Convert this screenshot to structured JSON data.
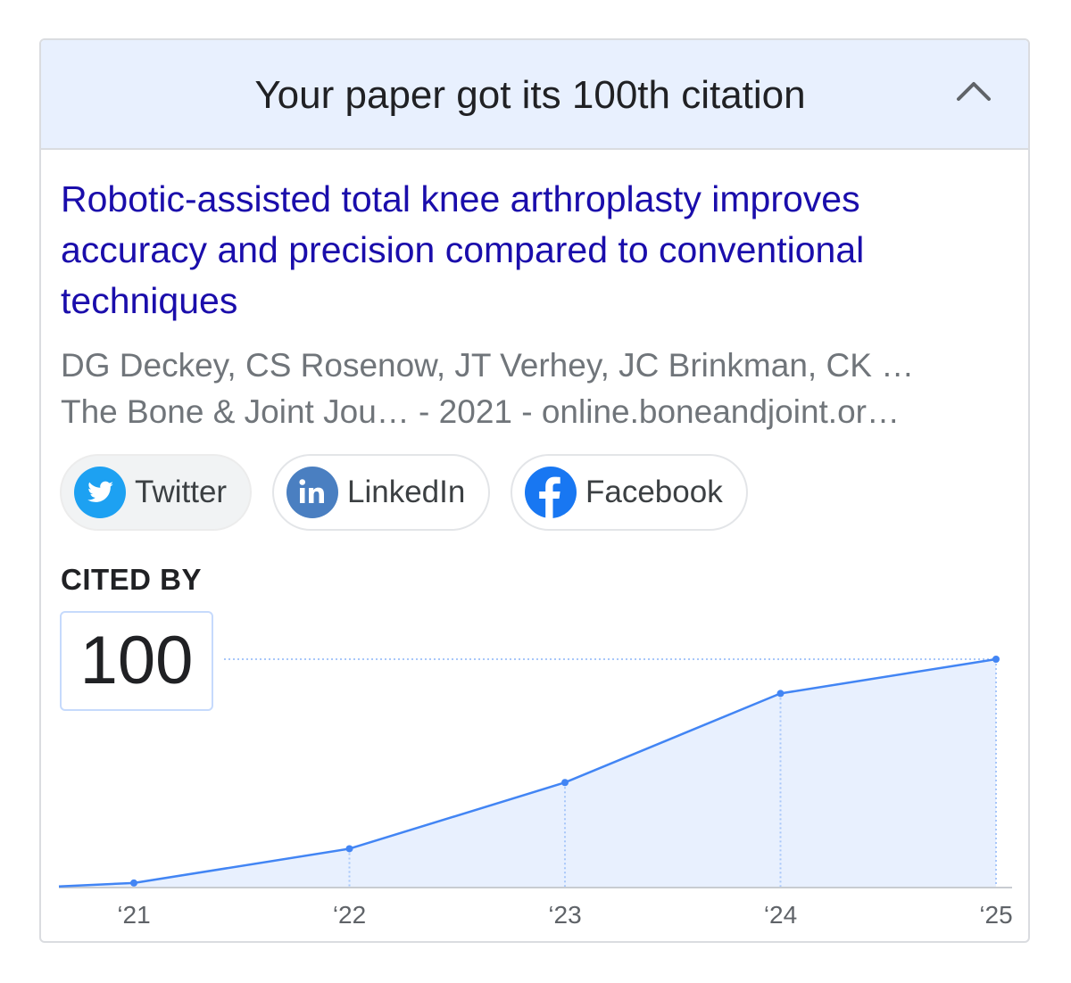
{
  "header": {
    "title": "Your paper got its 100th citation"
  },
  "paper": {
    "title": "Robotic-assisted total knee arthroplasty improves accuracy and precision compared to conventional techniques",
    "authors": "DG Deckey, CS Rosenow, JT Verhey, JC Brinkman, CK …",
    "source": "The Bone & Joint Jou…  - 2021 - online.boneandjoint.or…"
  },
  "share": [
    {
      "label": "Twitter",
      "icon": "twitter-icon",
      "color": "#1da1f2"
    },
    {
      "label": "LinkedIn",
      "icon": "linkedin-icon",
      "color": "#4a7fc1"
    },
    {
      "label": "Facebook",
      "icon": "facebook-icon",
      "color": "#1877f2"
    }
  ],
  "cited_by": {
    "label": "CITED BY",
    "count": "100"
  },
  "colors": {
    "accent": "#4285f4",
    "fill": "#e8f0fe",
    "link": "#1a0dab"
  },
  "chart_data": {
    "type": "area",
    "x": [
      "‘21",
      "‘22",
      "‘23",
      "‘24",
      "‘25"
    ],
    "values": [
      2,
      17,
      46,
      85,
      100
    ],
    "start_value": 0.5,
    "ylim": [
      0,
      100
    ],
    "grid": false
  }
}
